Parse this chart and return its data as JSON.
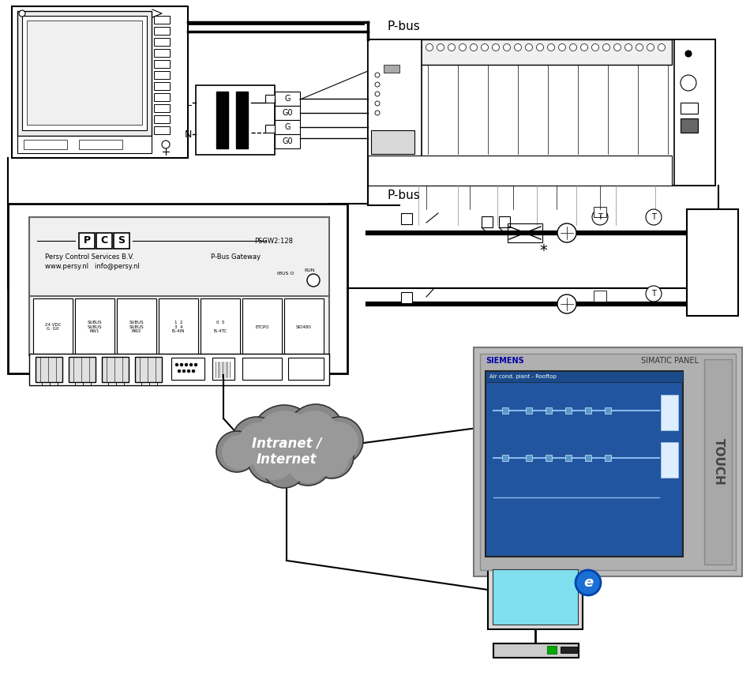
{
  "bg_color": "#ffffff",
  "black": "#000000",
  "gray": "#888888",
  "dgray": "#555555",
  "lgray": "#cccccc",
  "blue_screen": "#2a5fa5",
  "panel_gray": "#c0c0c0",
  "pbus1_label": "P-bus",
  "pbus2_label": "P-bus",
  "simatic_label": "SIMATIC PANEL",
  "siemens_label": "SIEMENS",
  "intranet_text": "Intranet /\nInternet",
  "touch_text": "TOUCH",
  "air_cond_text": "Air cond. plant - Rooftop",
  "pcs_line1": "Persy Control Services B.V.",
  "pcs_line2": "www.persy.nl   info@persy.nl",
  "pcs_right": "P-Bus Gateway",
  "psgw": "PSGW2:128"
}
